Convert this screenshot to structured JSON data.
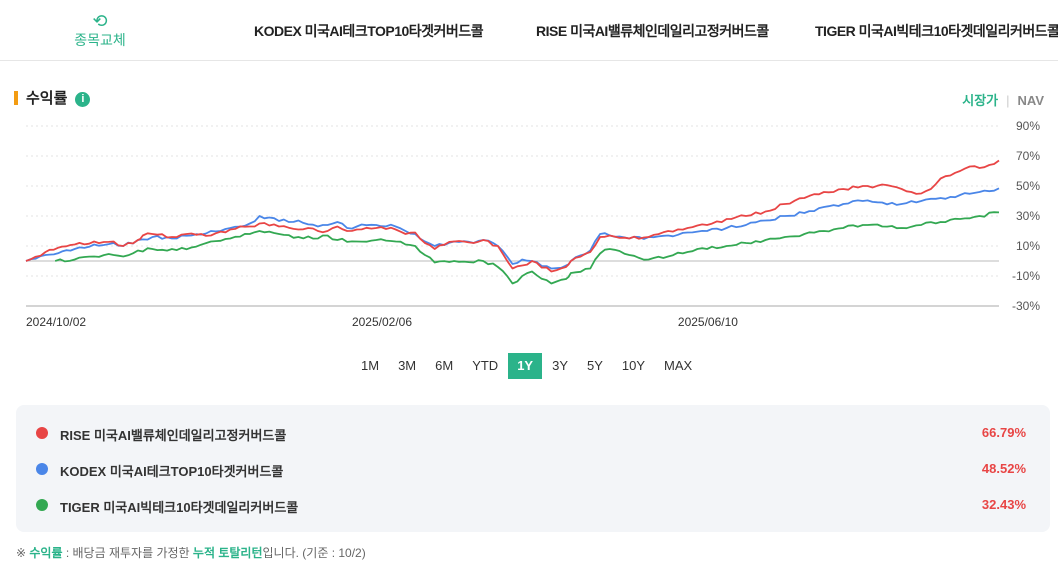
{
  "header": {
    "swap_icon": "refresh-icon",
    "swap_label": "종목교체",
    "tabs": [
      "KODEX 미국AI테크TOP10타겟커버드콜",
      "RISE 미국AI밸류체인데일리고정커버드콜",
      "TIGER 미국AI빅테크10타겟데일리커버드콜"
    ]
  },
  "section": {
    "title": "수익률",
    "info_icon": "info-icon",
    "price_toggle": "시장가",
    "nav_toggle": "NAV"
  },
  "ranges": [
    "1M",
    "3M",
    "6M",
    "YTD",
    "1Y",
    "3Y",
    "5Y",
    "10Y",
    "MAX"
  ],
  "active_range": "1Y",
  "legend": [
    {
      "name": "RISE 미국AI밸류체인데일리고정커버드콜",
      "value": "66.79%",
      "color": "#e84545"
    },
    {
      "name": "KODEX 미국AI테크TOP10타겟커버드콜",
      "value": "48.52%",
      "color": "#4a86e8"
    },
    {
      "name": "TIGER 미국AI빅테크10타겟데일리커버드콜",
      "value": "32.43%",
      "color": "#33a852"
    }
  ],
  "note": {
    "prefix": "※ ",
    "term1": "수익률",
    "mid": " : 배당금 재투자를 가정한 ",
    "term2": "누적 토탈리턴",
    "suffix": "입니다. (기준 : 10/2)"
  },
  "chart_data": {
    "type": "line",
    "x_tick_labels": [
      "2024/10/02",
      "2025/02/06",
      "2025/06/10"
    ],
    "y_tick_labels": [
      "90%",
      "70%",
      "50%",
      "30%",
      "10%",
      "-10%",
      "-30%"
    ],
    "ylim": [
      -30,
      90
    ],
    "grid": true,
    "series": [
      {
        "name": "RISE 미국AI밸류체인데일리고정커버드콜",
        "color": "#e84545",
        "points": [
          [
            0,
            0
          ],
          [
            0.02,
            6
          ],
          [
            0.05,
            11
          ],
          [
            0.07,
            13
          ],
          [
            0.09,
            13
          ],
          [
            0.1,
            10
          ],
          [
            0.115,
            14
          ],
          [
            0.12,
            17
          ],
          [
            0.13,
            18
          ],
          [
            0.15,
            16
          ],
          [
            0.165,
            18
          ],
          [
            0.19,
            17
          ],
          [
            0.21,
            21
          ],
          [
            0.23,
            23
          ],
          [
            0.24,
            25
          ],
          [
            0.26,
            23
          ],
          [
            0.28,
            21
          ],
          [
            0.29,
            22
          ],
          [
            0.3,
            20
          ],
          [
            0.31,
            20
          ],
          [
            0.32,
            23
          ],
          [
            0.33,
            20
          ],
          [
            0.34,
            21
          ],
          [
            0.36,
            22
          ],
          [
            0.38,
            21
          ],
          [
            0.39,
            18
          ],
          [
            0.4,
            19
          ],
          [
            0.41,
            12
          ],
          [
            0.42,
            8
          ],
          [
            0.44,
            13
          ],
          [
            0.46,
            12
          ],
          [
            0.47,
            14
          ],
          [
            0.485,
            10
          ],
          [
            0.5,
            -5
          ],
          [
            0.51,
            -3
          ],
          [
            0.52,
            0
          ],
          [
            0.54,
            -7
          ],
          [
            0.555,
            -4
          ],
          [
            0.56,
            0
          ],
          [
            0.58,
            6
          ],
          [
            0.59,
            16
          ],
          [
            0.6,
            17
          ],
          [
            0.62,
            15
          ],
          [
            0.64,
            16
          ],
          [
            0.66,
            20
          ],
          [
            0.68,
            22
          ],
          [
            0.7,
            24
          ],
          [
            0.72,
            28
          ],
          [
            0.74,
            30
          ],
          [
            0.76,
            33
          ],
          [
            0.78,
            38
          ],
          [
            0.8,
            42
          ],
          [
            0.82,
            46
          ],
          [
            0.84,
            48
          ],
          [
            0.86,
            50
          ],
          [
            0.87,
            49
          ],
          [
            0.88,
            51
          ],
          [
            0.9,
            48
          ],
          [
            0.91,
            46
          ],
          [
            0.92,
            45
          ],
          [
            0.93,
            48
          ],
          [
            0.94,
            55
          ],
          [
            0.95,
            57
          ],
          [
            0.96,
            60
          ],
          [
            0.97,
            63
          ],
          [
            0.98,
            62
          ],
          [
            0.99,
            64
          ],
          [
            1,
            67
          ]
        ]
      },
      {
        "name": "KODEX 미국AI테크TOP10타겟커버드콜",
        "color": "#4a86e8",
        "points": [
          [
            0,
            0
          ],
          [
            0.02,
            4
          ],
          [
            0.05,
            8
          ],
          [
            0.07,
            11
          ],
          [
            0.09,
            12
          ],
          [
            0.1,
            10
          ],
          [
            0.115,
            14
          ],
          [
            0.13,
            16
          ],
          [
            0.15,
            15
          ],
          [
            0.17,
            17
          ],
          [
            0.19,
            20
          ],
          [
            0.21,
            22
          ],
          [
            0.23,
            25
          ],
          [
            0.24,
            30
          ],
          [
            0.25,
            29
          ],
          [
            0.27,
            26
          ],
          [
            0.28,
            27
          ],
          [
            0.3,
            23
          ],
          [
            0.31,
            24
          ],
          [
            0.32,
            26
          ],
          [
            0.33,
            22
          ],
          [
            0.34,
            23
          ],
          [
            0.36,
            24
          ],
          [
            0.38,
            23
          ],
          [
            0.39,
            20
          ],
          [
            0.4,
            18
          ],
          [
            0.41,
            13
          ],
          [
            0.42,
            10
          ],
          [
            0.44,
            13
          ],
          [
            0.46,
            12
          ],
          [
            0.47,
            14
          ],
          [
            0.485,
            10
          ],
          [
            0.5,
            -2
          ],
          [
            0.51,
            1
          ],
          [
            0.52,
            0
          ],
          [
            0.54,
            -5
          ],
          [
            0.555,
            -3
          ],
          [
            0.56,
            0
          ],
          [
            0.58,
            7
          ],
          [
            0.59,
            18
          ],
          [
            0.6,
            17
          ],
          [
            0.62,
            15
          ],
          [
            0.64,
            16
          ],
          [
            0.66,
            17
          ],
          [
            0.68,
            19
          ],
          [
            0.7,
            20
          ],
          [
            0.72,
            22
          ],
          [
            0.74,
            24
          ],
          [
            0.76,
            27
          ],
          [
            0.78,
            30
          ],
          [
            0.8,
            32
          ],
          [
            0.82,
            36
          ],
          [
            0.84,
            38
          ],
          [
            0.86,
            40
          ],
          [
            0.88,
            39
          ],
          [
            0.9,
            38
          ],
          [
            0.92,
            40
          ],
          [
            0.94,
            42
          ],
          [
            0.96,
            44
          ],
          [
            0.98,
            46
          ],
          [
            1,
            48.5
          ]
        ]
      },
      {
        "name": "TIGER 미국AI빅테크10타겟데일리커버드콜",
        "color": "#33a852",
        "points": [
          [
            0.03,
            0
          ],
          [
            0.05,
            1
          ],
          [
            0.07,
            3
          ],
          [
            0.09,
            4
          ],
          [
            0.1,
            3
          ],
          [
            0.115,
            7
          ],
          [
            0.13,
            8
          ],
          [
            0.15,
            8
          ],
          [
            0.17,
            9
          ],
          [
            0.19,
            13
          ],
          [
            0.21,
            15
          ],
          [
            0.23,
            18
          ],
          [
            0.24,
            20
          ],
          [
            0.26,
            18
          ],
          [
            0.28,
            16
          ],
          [
            0.3,
            15
          ],
          [
            0.31,
            17
          ],
          [
            0.32,
            14
          ],
          [
            0.34,
            13
          ],
          [
            0.36,
            14
          ],
          [
            0.38,
            13
          ],
          [
            0.39,
            11
          ],
          [
            0.4,
            10
          ],
          [
            0.41,
            4
          ],
          [
            0.42,
            -1
          ],
          [
            0.44,
            0
          ],
          [
            0.46,
            -1
          ],
          [
            0.47,
            0
          ],
          [
            0.485,
            -4
          ],
          [
            0.5,
            -15
          ],
          [
            0.51,
            -10
          ],
          [
            0.52,
            -7
          ],
          [
            0.54,
            -15
          ],
          [
            0.555,
            -12
          ],
          [
            0.56,
            -8
          ],
          [
            0.58,
            -5
          ],
          [
            0.59,
            5
          ],
          [
            0.6,
            8
          ],
          [
            0.62,
            4
          ],
          [
            0.64,
            1
          ],
          [
            0.66,
            3
          ],
          [
            0.68,
            6
          ],
          [
            0.7,
            8
          ],
          [
            0.72,
            10
          ],
          [
            0.74,
            12
          ],
          [
            0.76,
            14
          ],
          [
            0.78,
            16
          ],
          [
            0.8,
            18
          ],
          [
            0.82,
            20
          ],
          [
            0.84,
            22
          ],
          [
            0.86,
            24
          ],
          [
            0.88,
            23
          ],
          [
            0.9,
            22
          ],
          [
            0.92,
            24
          ],
          [
            0.94,
            26
          ],
          [
            0.96,
            28
          ],
          [
            0.98,
            30
          ],
          [
            1,
            32.4
          ]
        ]
      }
    ]
  }
}
